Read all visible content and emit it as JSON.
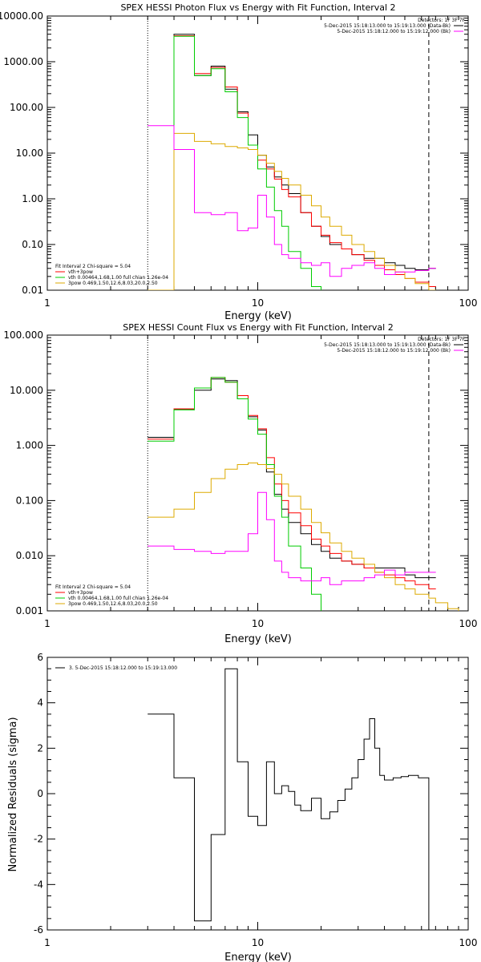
{
  "chart_data": [
    {
      "type": "line",
      "title": "SPEX HESSI Photon Flux vs Energy with Fit Function, Interval 2",
      "xlabel": "Energy (keV)",
      "ylabel": "",
      "xscale": "log",
      "yscale": "log",
      "xlim": [
        1,
        100
      ],
      "ylim": [
        0.01,
        10000
      ],
      "xticks": [
        {
          "v": 1,
          "label": "1"
        },
        {
          "v": 10,
          "label": "10"
        },
        {
          "v": 100,
          "label": "100"
        }
      ],
      "yticks": [
        {
          "v": 10000,
          "label": "10000.00"
        },
        {
          "v": 1000,
          "label": "1000.00"
        },
        {
          "v": 100,
          "label": "100.00"
        },
        {
          "v": 10,
          "label": "10.00"
        },
        {
          "v": 1,
          "label": "1.00"
        },
        {
          "v": 0.1,
          "label": "0.10"
        },
        {
          "v": 0.01,
          "label": "0.01"
        }
      ],
      "vlines": [
        {
          "x": 3,
          "style": "dotted",
          "color": "#000000"
        },
        {
          "x": 65,
          "style": "dashed",
          "color": "#000000"
        }
      ],
      "top_legend": {
        "header": "Detectors: 1F 3F 7F",
        "entries": [
          {
            "label": "5-Dec-2015 15:18:13.000 to 15:19:13.000 (Data-Bk)",
            "color": "#000000"
          },
          {
            "label": "5-Dec-2015 15:18:12.000 to 15:19:12.000 (Bk)",
            "color": "#ff00ff"
          }
        ]
      },
      "bottom_legend": {
        "header": "Fit Interval 2   Chi-square = 5.04",
        "entries": [
          {
            "label": "vth+3pow",
            "color": "#ff0000"
          },
          {
            "label": "vth 0.00464,1.68,1.00  full chian 1.26e-04",
            "color": "#00cc00"
          },
          {
            "label": "3pow 0.469,1.50,12.6,8.03,20.0,2.50",
            "color": "#ddaa00"
          }
        ]
      },
      "series": [
        {
          "name": "5-Dec-2015 15:18:13.000 to 15:19:13.000 (Data-Bk)",
          "color": "#000000",
          "x": [
            3,
            4,
            5,
            6,
            7,
            8,
            9,
            10,
            11,
            12,
            13,
            14,
            16,
            18,
            20,
            22,
            25,
            28,
            32,
            36,
            40,
            45,
            50,
            56,
            65
          ],
          "y": [
            0.01,
            4000,
            500,
            800,
            250,
            80,
            25,
            9,
            5,
            3,
            2,
            1.3,
            0.5,
            0.25,
            0.15,
            0.1,
            0.08,
            0.06,
            0.05,
            0.05,
            0.04,
            0.035,
            0.03,
            0.028,
            0.03
          ]
        },
        {
          "name": "vth+3pow",
          "color": "#ff0000",
          "x": [
            3,
            4,
            5,
            6,
            7,
            8,
            9,
            10,
            11,
            12,
            13,
            14,
            16,
            18,
            20,
            22,
            25,
            28,
            32,
            36,
            40,
            45,
            50,
            56,
            65
          ],
          "y": [
            0.01,
            3700,
            550,
            750,
            280,
            75,
            15,
            7,
            4.5,
            2.7,
            1.6,
            1.1,
            0.5,
            0.25,
            0.16,
            0.11,
            0.08,
            0.06,
            0.045,
            0.035,
            0.028,
            0.022,
            0.018,
            0.015,
            0.012
          ]
        },
        {
          "name": "vth 0.00464,1.68,1.00  full chian 1.26e-04",
          "color": "#00cc00",
          "x": [
            3,
            4,
            5,
            6,
            7,
            8,
            9,
            10,
            11,
            12,
            13,
            14,
            16,
            18,
            20
          ],
          "y": [
            0.01,
            3600,
            500,
            700,
            220,
            60,
            15,
            4.5,
            1.8,
            0.55,
            0.25,
            0.07,
            0.03,
            0.012,
            0.005
          ]
        },
        {
          "name": "3pow 0.469,1.50,12.6,8.03,20.0,2.50",
          "color": "#ddaa00",
          "x": [
            3,
            4,
            5,
            6,
            7,
            8,
            9,
            10,
            11,
            12,
            13,
            14,
            16,
            18,
            20,
            22,
            25,
            28,
            32,
            36,
            40,
            45,
            50,
            56,
            65,
            70
          ],
          "y": [
            0.01,
            27,
            18,
            16,
            14,
            13,
            12,
            9,
            6,
            4,
            2.8,
            2,
            1.2,
            0.7,
            0.4,
            0.25,
            0.16,
            0.1,
            0.07,
            0.05,
            0.035,
            0.025,
            0.018,
            0.014,
            0.01,
            0.008
          ]
        },
        {
          "name": "5-Dec-2015 15:18:12.000 to 15:19:12.000 (Bk)",
          "color": "#ff00ff",
          "x": [
            3,
            4,
            5,
            6,
            7,
            8,
            9,
            10,
            11,
            12,
            13,
            14,
            16,
            18,
            20,
            22,
            25,
            28,
            32,
            36,
            40,
            45,
            50,
            56,
            65
          ],
          "y": [
            40,
            12,
            0.5,
            0.45,
            0.5,
            0.2,
            0.23,
            1.2,
            0.4,
            0.1,
            0.06,
            0.05,
            0.04,
            0.035,
            0.04,
            0.02,
            0.03,
            0.035,
            0.04,
            0.03,
            0.022,
            0.025,
            0.025,
            0.027,
            0.03
          ]
        }
      ]
    },
    {
      "type": "line",
      "title": "SPEX HESSI Count Flux vs Energy with Fit Function, Interval 2",
      "xlabel": "Energy (keV)",
      "ylabel": "",
      "xscale": "log",
      "yscale": "log",
      "xlim": [
        1,
        100
      ],
      "ylim": [
        0.001,
        100
      ],
      "xticks": [
        {
          "v": 1,
          "label": "1"
        },
        {
          "v": 10,
          "label": "10"
        },
        {
          "v": 100,
          "label": "100"
        }
      ],
      "yticks": [
        {
          "v": 100,
          "label": "100.000"
        },
        {
          "v": 10,
          "label": "10.000"
        },
        {
          "v": 1,
          "label": "1.000"
        },
        {
          "v": 0.1,
          "label": "0.100"
        },
        {
          "v": 0.01,
          "label": "0.010"
        },
        {
          "v": 0.001,
          "label": "0.001"
        }
      ],
      "vlines": [
        {
          "x": 3,
          "style": "dotted",
          "color": "#000000"
        },
        {
          "x": 65,
          "style": "dashed",
          "color": "#000000"
        }
      ],
      "top_legend": {
        "header": "Detectors: 1F 3F 7F",
        "entries": [
          {
            "label": "5-Dec-2015 15:18:13.000 to 15:19:13.000 (Data-Bk)",
            "color": "#000000"
          },
          {
            "label": "5-Dec-2015 15:18:12.000 to 15:19:12.000 (Bk)",
            "color": "#ff00ff"
          }
        ]
      },
      "bottom_legend": {
        "header": "Fit Interval 2   Chi-square = 5.04",
        "entries": [
          {
            "label": "vth+3pow",
            "color": "#ff0000"
          },
          {
            "label": "vth 0.00464,1.68,1.00  full chian 1.26e-04",
            "color": "#00cc00"
          },
          {
            "label": "3pow 0.469,1.50,12.6,8.03,20.0,2.50",
            "color": "#ddaa00"
          }
        ]
      },
      "series": [
        {
          "name": "5-Dec-2015 15:18:13.000 to 15:19:13.000 (Data-Bk)",
          "color": "#000000",
          "x": [
            3,
            4,
            5,
            6,
            7,
            8,
            9,
            10,
            11,
            12,
            13,
            14,
            16,
            18,
            20,
            22,
            25,
            28,
            32,
            36,
            40,
            45,
            50,
            56,
            65
          ],
          "y": [
            1.4,
            4.5,
            10,
            16,
            15,
            7,
            3.3,
            1.9,
            0.33,
            0.13,
            0.07,
            0.04,
            0.025,
            0.016,
            0.012,
            0.009,
            0.008,
            0.007,
            0.006,
            0.006,
            0.006,
            0.006,
            0.0045,
            0.004,
            0.004
          ]
        },
        {
          "name": "vth+3pow",
          "color": "#ff0000",
          "x": [
            3,
            4,
            5,
            6,
            7,
            8,
            9,
            10,
            11,
            12,
            13,
            14,
            16,
            18,
            20,
            22,
            25,
            28,
            32,
            36,
            40,
            45,
            50,
            56,
            65
          ],
          "y": [
            1.3,
            4.6,
            11,
            17,
            14,
            8,
            3.5,
            2,
            0.6,
            0.2,
            0.1,
            0.06,
            0.035,
            0.02,
            0.015,
            0.011,
            0.008,
            0.007,
            0.006,
            0.005,
            0.0045,
            0.004,
            0.0035,
            0.003,
            0.0025
          ]
        },
        {
          "name": "vth 0.00464,1.68,1.00  full chian 1.26e-04",
          "color": "#00cc00",
          "x": [
            3,
            4,
            5,
            6,
            7,
            8,
            9,
            10,
            11,
            12,
            13,
            14,
            16,
            18,
            20
          ],
          "y": [
            1.2,
            4.4,
            11,
            17,
            14,
            7,
            3,
            1.6,
            0.45,
            0.12,
            0.05,
            0.015,
            0.006,
            0.002,
            0.0008
          ]
        },
        {
          "name": "3pow 0.469,1.50,12.6,8.03,20.0,2.50",
          "color": "#ddaa00",
          "x": [
            3,
            4,
            5,
            6,
            7,
            8,
            9,
            10,
            11,
            12,
            13,
            14,
            16,
            18,
            20,
            22,
            25,
            28,
            32,
            36,
            40,
            45,
            50,
            56,
            65,
            70,
            80,
            90
          ],
          "y": [
            0.05,
            0.07,
            0.14,
            0.25,
            0.37,
            0.45,
            0.48,
            0.45,
            0.38,
            0.3,
            0.2,
            0.12,
            0.07,
            0.04,
            0.026,
            0.017,
            0.012,
            0.009,
            0.007,
            0.005,
            0.004,
            0.003,
            0.0025,
            0.002,
            0.0017,
            0.0014,
            0.0011,
            0.0009
          ]
        },
        {
          "name": "5-Dec-2015 15:18:12.000 to 15:19:12.000 (Bk)",
          "color": "#ff00ff",
          "x": [
            3,
            4,
            5,
            6,
            7,
            8,
            9,
            10,
            11,
            12,
            13,
            14,
            16,
            18,
            20,
            22,
            25,
            28,
            32,
            36,
            40,
            45,
            50,
            56,
            65
          ],
          "y": [
            0.015,
            0.013,
            0.012,
            0.011,
            0.012,
            0.012,
            0.025,
            0.14,
            0.045,
            0.008,
            0.005,
            0.004,
            0.0035,
            0.0035,
            0.004,
            0.003,
            0.0035,
            0.0035,
            0.004,
            0.0045,
            0.0055,
            0.0045,
            0.005,
            0.005,
            0.005
          ]
        }
      ]
    },
    {
      "type": "line",
      "title": "",
      "xlabel": "Energy (keV)",
      "ylabel": "Normalized Residuals (sigma)",
      "xscale": "log",
      "yscale": "linear",
      "xlim": [
        1,
        100
      ],
      "ylim": [
        -6,
        6
      ],
      "xticks": [
        {
          "v": 1,
          "label": "1"
        },
        {
          "v": 10,
          "label": "10"
        },
        {
          "v": 100,
          "label": "100"
        }
      ],
      "yticks": [
        {
          "v": 6,
          "label": "6"
        },
        {
          "v": 4,
          "label": "4"
        },
        {
          "v": 2,
          "label": "2"
        },
        {
          "v": 0,
          "label": "0"
        },
        {
          "v": -2,
          "label": "-2"
        },
        {
          "v": -4,
          "label": "-4"
        },
        {
          "v": -6,
          "label": "-6"
        }
      ],
      "top_legend": {
        "header": "",
        "entries": [
          {
            "label": "3. 5-Dec-2015 15:18:12.000 to 15:19:13.000",
            "color": "#000000"
          }
        ]
      },
      "series": [
        {
          "name": "3. 5-Dec-2015 15:18:12.000 to 15:19:13.000",
          "color": "#000000",
          "x": [
            3,
            4,
            5,
            6,
            7,
            8,
            9,
            10,
            11,
            12,
            13,
            14,
            15,
            16,
            18,
            20,
            22,
            24,
            26,
            28,
            30,
            32,
            34,
            36,
            38,
            40,
            44,
            48,
            52,
            58,
            65
          ],
          "y": [
            3.5,
            0.7,
            -5.6,
            -1.8,
            5.5,
            1.4,
            -1.0,
            -1.4,
            1.4,
            0.0,
            0.35,
            0.1,
            -0.5,
            -0.75,
            -0.2,
            -1.1,
            -0.8,
            -0.3,
            0.2,
            0.7,
            1.5,
            2.4,
            3.3,
            2.0,
            0.8,
            0.6,
            0.7,
            0.75,
            0.8,
            0.7,
            -6
          ]
        }
      ]
    }
  ]
}
